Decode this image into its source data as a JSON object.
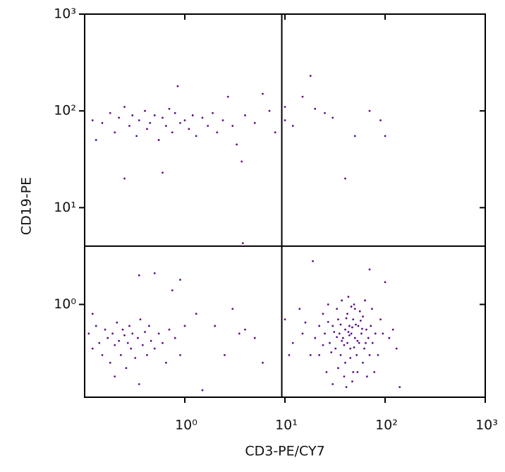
{
  "chart_data": {
    "type": "scatter",
    "x_label": "CD3-PE/CY7",
    "y_label": "CD19-PE",
    "log_x": true,
    "log_y": true,
    "xlim": [
      0.1,
      1000
    ],
    "ylim": [
      0.11,
      1000
    ],
    "xticks": [
      {
        "value": 1,
        "label": "10⁰"
      },
      {
        "value": 10,
        "label": "10¹"
      },
      {
        "value": 100,
        "label": "10²"
      },
      {
        "value": 1000,
        "label": "10³"
      }
    ],
    "yticks": [
      {
        "value": 1,
        "label": "10⁰"
      },
      {
        "value": 10,
        "label": "10¹"
      },
      {
        "value": 100,
        "label": "10²"
      },
      {
        "value": 1000,
        "label": "10³"
      }
    ],
    "gates": {
      "x": 9.3,
      "y": 4
    },
    "series": [
      {
        "color": "#5b0f86",
        "x": [
          0.12,
          0.15,
          0.18,
          0.2,
          0.22,
          0.25,
          0.28,
          0.3,
          0.33,
          0.35,
          0.4,
          0.42,
          0.45,
          0.5,
          0.55,
          0.6,
          0.65,
          0.7,
          0.75,
          0.8,
          0.85,
          0.9,
          1,
          1.1,
          1.2,
          1.3,
          1.5,
          1.7,
          1.9,
          2.1,
          2.4,
          2.7,
          3,
          3.3,
          3.7,
          4,
          5,
          6,
          7,
          0.13,
          0.25,
          0.6,
          3.8,
          8,
          10,
          12,
          15,
          18,
          20,
          25,
          30,
          50,
          70,
          90,
          100,
          40,
          10,
          0.11,
          0.12,
          0.13,
          0.14,
          0.15,
          0.16,
          0.17,
          0.18,
          0.19,
          0.2,
          0.21,
          0.22,
          0.23,
          0.24,
          0.25,
          0.26,
          0.27,
          0.28,
          0.29,
          0.3,
          0.32,
          0.34,
          0.36,
          0.38,
          0.4,
          0.42,
          0.44,
          0.46,
          0.5,
          0.55,
          0.6,
          0.65,
          0.7,
          0.8,
          0.9,
          1,
          0.12,
          0.2,
          0.35,
          0.5,
          0.35,
          0.9,
          1.5,
          2,
          2.5,
          3,
          3.5,
          4,
          5,
          6,
          0.75,
          1.3,
          25,
          28,
          30,
          32,
          34,
          35,
          36,
          38,
          40,
          40,
          42,
          42,
          44,
          45,
          46,
          48,
          48,
          50,
          50,
          52,
          54,
          55,
          58,
          60,
          60,
          62,
          65,
          68,
          70,
          72,
          75,
          80,
          85,
          90,
          20,
          22,
          22,
          24,
          26,
          27,
          30,
          33,
          37,
          39,
          41,
          43,
          47,
          49,
          53,
          56,
          63,
          66,
          74,
          78,
          95,
          100,
          110,
          120,
          130,
          140,
          15,
          12,
          18,
          16,
          10,
          11,
          14,
          19,
          70,
          31,
          36,
          44,
          39,
          47,
          53,
          29,
          57,
          34,
          45,
          51,
          41,
          37,
          43,
          49,
          33,
          59,
          64,
          27,
          24,
          46
        ],
        "y": [
          80,
          75,
          95,
          60,
          85,
          110,
          70,
          90,
          55,
          80,
          100,
          65,
          75,
          90,
          50,
          85,
          70,
          105,
          60,
          95,
          180,
          75,
          80,
          65,
          90,
          55,
          85,
          70,
          95,
          60,
          80,
          140,
          70,
          45,
          30,
          90,
          75,
          150,
          100,
          50,
          20,
          23,
          4.3,
          60,
          110,
          70,
          140,
          230,
          105,
          95,
          85,
          55,
          100,
          80,
          55,
          20,
          80,
          0.5,
          0.35,
          0.6,
          0.4,
          0.3,
          0.55,
          0.45,
          0.25,
          0.5,
          0.38,
          0.65,
          0.42,
          0.3,
          0.55,
          0.48,
          0.22,
          0.4,
          0.6,
          0.35,
          0.5,
          0.28,
          0.45,
          0.7,
          0.38,
          0.52,
          0.3,
          0.6,
          0.42,
          0.35,
          0.5,
          0.4,
          0.25,
          0.55,
          0.45,
          0.3,
          0.6,
          0.8,
          0.18,
          0.15,
          2.1,
          2,
          1.8,
          0.13,
          0.6,
          0.3,
          0.9,
          0.5,
          0.55,
          0.45,
          0.25,
          1.4,
          0.8,
          0.5,
          0.4,
          0.6,
          0.35,
          0.7,
          0.5,
          0.3,
          0.45,
          0.55,
          0.25,
          0.8,
          0.4,
          0.6,
          0.35,
          0.5,
          0.2,
          0.7,
          0.45,
          0.9,
          0.3,
          0.6,
          0.4,
          0.5,
          0.25,
          0.75,
          0.35,
          0.55,
          0.45,
          0.3,
          0.6,
          0.4,
          0.5,
          0.3,
          0.7,
          0.45,
          0.6,
          0.3,
          0.8,
          0.2,
          1.0,
          0.15,
          0.9,
          1.1,
          0.18,
          0.14,
          1.2,
          0.16,
          1.0,
          0.2,
          0.85,
          1.1,
          0.18,
          0.9,
          0.2,
          0.5,
          1.7,
          0.45,
          0.55,
          0.35,
          0.14,
          0.5,
          0.4,
          0.3,
          0.65,
          0.7,
          0.3,
          0.9,
          2.8,
          2.3,
          0.52,
          0.62,
          0.48,
          0.38,
          0.58,
          0.42,
          0.32,
          0.68,
          0.22,
          0.28,
          0.62,
          0.72,
          0.42,
          0.52,
          0.36,
          0.46,
          0.56,
          0.4,
          0.66,
          0.38,
          0.95
        ]
      }
    ]
  }
}
